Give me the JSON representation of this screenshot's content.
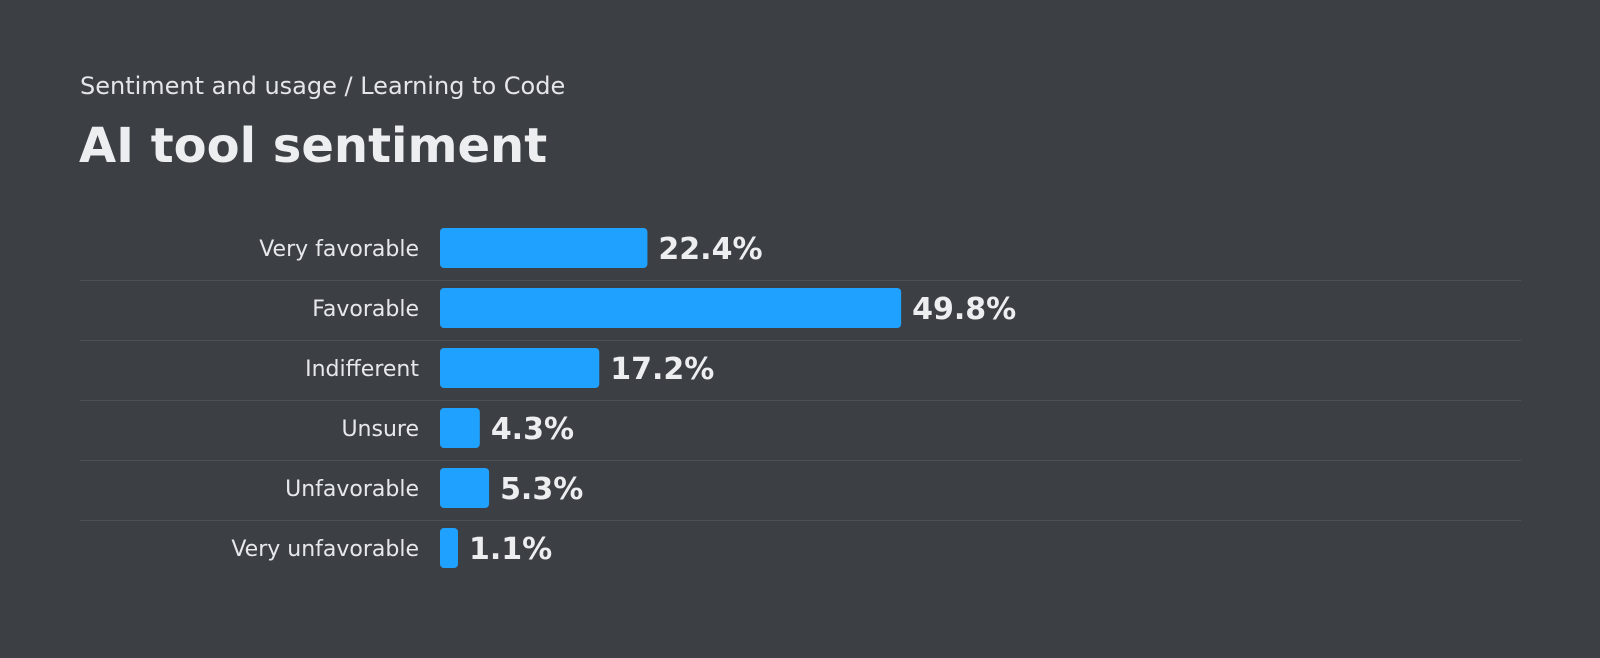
{
  "header": {
    "breadcrumb": "Sentiment and usage / Learning to Code",
    "title": "AI tool sentiment"
  },
  "colors": {
    "background": "#3c4045",
    "bar": "#1fa2ff",
    "divider": "#4c5157",
    "text": "#e6e8eb"
  },
  "chart_data": {
    "type": "bar",
    "orientation": "horizontal",
    "categories": [
      "Very favorable",
      "Favorable",
      "Indifferent",
      "Unsure",
      "Unfavorable",
      "Very unfavorable"
    ],
    "values": [
      22.4,
      49.8,
      17.2,
      4.3,
      5.3,
      1.1
    ],
    "value_labels": [
      "22.4%",
      "49.8%",
      "17.2%",
      "4.3%",
      "5.3%",
      "1.1%"
    ],
    "unit": "%",
    "xlim": [
      0,
      100
    ],
    "grid": false,
    "legend": "none"
  }
}
